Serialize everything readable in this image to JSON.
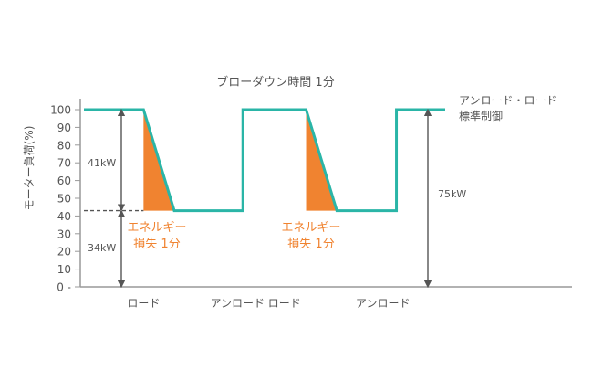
{
  "chart_data": {
    "type": "line",
    "title": "ブローダウン時間 1分",
    "ylabel": "モーター負荷(%)",
    "ylim": [
      0,
      100
    ],
    "yticks": [
      0,
      10,
      20,
      30,
      40,
      50,
      60,
      70,
      80,
      90,
      100
    ],
    "categories": [
      "ロード",
      "アンロード",
      "ロード",
      "アンロード"
    ],
    "series": [
      {
        "name": "アンロード・ロード標準制御",
        "x": [
          0,
          3.3,
          5.0,
          8.8,
          8.8,
          12.3,
          14.0,
          17.3,
          17.3,
          20.0
        ],
        "values": [
          100,
          100,
          43,
          43,
          100,
          100,
          43,
          43,
          100,
          100
        ]
      }
    ],
    "legend_label": [
      "アンロード・ロード",
      "標準制御"
    ],
    "annotations": {
      "upper_range": "41kW",
      "lower_range": "34kW",
      "full_range": "75kW",
      "energy_loss": [
        "エネルギー",
        "損失 1分"
      ],
      "reference_level": 43
    },
    "colors": {
      "line": "#2ab5a7",
      "loss_fill": "#f08330",
      "axis": "#999999",
      "arrow": "#555555",
      "text": "#555555"
    }
  }
}
